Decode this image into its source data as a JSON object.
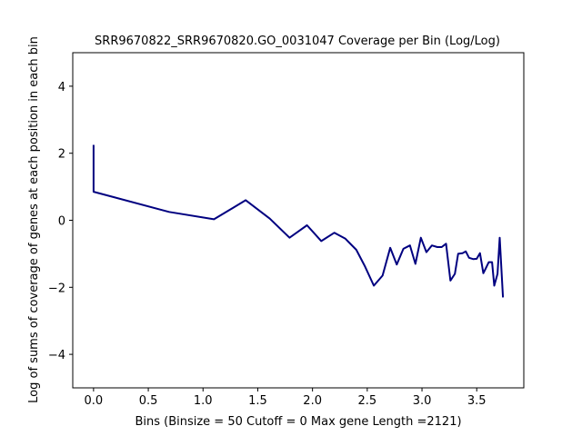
{
  "chart_data": {
    "type": "line",
    "title": "SRR9670822_SRR9670820.GO_0031047 Coverage per Bin (Log/Log)",
    "xlabel": "Bins  (Binsize = 50 Cutoff = 0 Max gene Length =2121)",
    "ylabel": "Log of sums of coverage of genes at each position in each bin",
    "xlim": [
      -0.19,
      3.93
    ],
    "ylim": [
      -5,
      5
    ],
    "xticks": [
      0.0,
      0.5,
      1.0,
      1.5,
      2.0,
      2.5,
      3.0,
      3.5
    ],
    "xtick_labels": [
      "0.0",
      "0.5",
      "1.0",
      "1.5",
      "2.0",
      "2.5",
      "3.0",
      "3.5"
    ],
    "yticks": [
      4,
      2,
      0,
      -2,
      -4
    ],
    "ytick_labels": [
      "4",
      "2",
      "0",
      "−2",
      "−4"
    ],
    "grid": false,
    "line_color": "#000080",
    "series": [
      {
        "x": [
          0.0,
          0.0,
          0.69,
          1.1,
          1.39,
          1.61,
          1.79,
          1.95,
          2.08,
          2.2,
          2.3,
          2.4,
          2.48,
          2.56,
          2.64,
          2.71,
          2.77,
          2.83,
          2.89,
          2.94,
          2.99,
          3.04,
          3.09,
          3.14,
          3.18,
          3.22,
          3.26,
          3.3,
          3.33,
          3.37,
          3.4,
          3.43,
          3.47,
          3.5,
          3.53,
          3.56,
          3.58,
          3.61,
          3.64,
          3.66,
          3.69,
          3.71,
          3.74
        ],
        "y": [
          2.25,
          0.85,
          0.25,
          0.03,
          0.6,
          0.05,
          -0.52,
          -0.15,
          -0.62,
          -0.37,
          -0.55,
          -0.88,
          -1.38,
          -1.95,
          -1.65,
          -0.82,
          -1.32,
          -0.85,
          -0.75,
          -1.3,
          -0.52,
          -0.95,
          -0.75,
          -0.8,
          -0.8,
          -0.7,
          -1.8,
          -1.6,
          -1.0,
          -0.98,
          -0.93,
          -1.12,
          -1.16,
          -1.15,
          -0.98,
          -1.58,
          -1.45,
          -1.25,
          -1.25,
          -1.95,
          -1.6,
          -0.52,
          -2.3
        ]
      }
    ]
  }
}
